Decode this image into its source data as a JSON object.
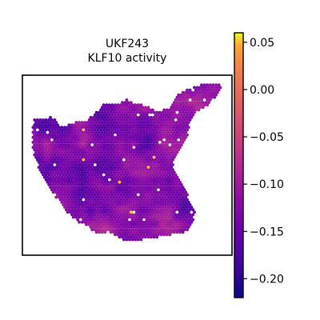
{
  "chart_data": {
    "type": "heatmap",
    "title_line1": "UKF243",
    "title_line2": "KLF10 activity",
    "xlabel": "",
    "ylabel": "",
    "colormap": "plasma",
    "colorbar": {
      "vmin": -0.22,
      "vmax": 0.06,
      "ticks": [
        0.05,
        0.0,
        -0.05,
        -0.1,
        -0.15,
        -0.2
      ],
      "tick_labels": [
        "0.05",
        "0.00",
        "−0.05",
        "−0.10",
        "−0.15",
        "−0.20"
      ]
    },
    "spot_value_summary": {
      "typical": -0.16,
      "low": -0.2,
      "high_outliers": 0.05
    }
  }
}
